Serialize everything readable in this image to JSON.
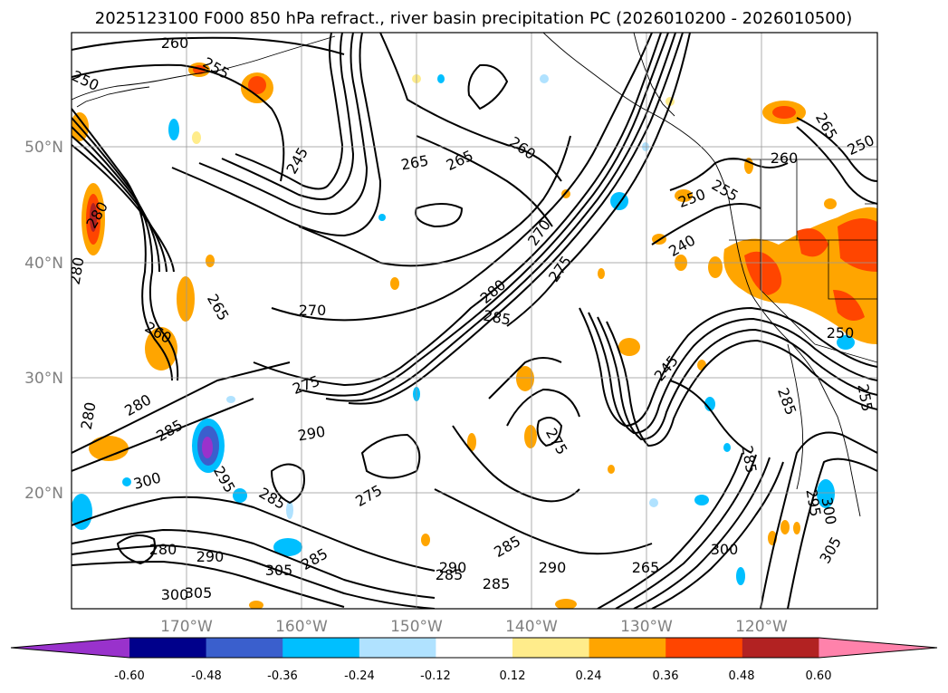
{
  "title": "2025123100 F000 850 hPa refract., river basin precipitation PC (2026010200 - 2026010500)",
  "map": {
    "lat_labels": [
      "50°N",
      "40°N",
      "30°N",
      "20°N"
    ],
    "lon_labels": [
      "170°W",
      "160°W",
      "150°W",
      "140°W",
      "130°W",
      "120°W"
    ]
  },
  "contour_labels": [
    {
      "id": "c260a",
      "text": "260"
    },
    {
      "id": "c255a",
      "text": "255"
    },
    {
      "id": "c250a",
      "text": "250"
    },
    {
      "id": "c245a",
      "text": "245"
    },
    {
      "id": "c265a",
      "text": "265"
    },
    {
      "id": "c265b",
      "text": "265"
    },
    {
      "id": "c260b",
      "text": "260"
    },
    {
      "id": "c260c",
      "text": "260"
    },
    {
      "id": "c265c",
      "text": "265"
    },
    {
      "id": "c250b",
      "text": "250"
    },
    {
      "id": "c255b",
      "text": "255"
    },
    {
      "id": "c250c",
      "text": "250"
    },
    {
      "id": "c270a",
      "text": "270"
    },
    {
      "id": "c275a",
      "text": "275"
    },
    {
      "id": "c280a",
      "text": "280"
    },
    {
      "id": "c285a",
      "text": "285"
    },
    {
      "id": "c270b",
      "text": "270"
    },
    {
      "id": "c265d",
      "text": "265"
    },
    {
      "id": "c260d",
      "text": "260"
    },
    {
      "id": "c240a",
      "text": "240"
    },
    {
      "id": "c250d",
      "text": "250"
    },
    {
      "id": "c245b",
      "text": "245"
    },
    {
      "id": "c275b",
      "text": "275"
    },
    {
      "id": "c275c",
      "text": "275"
    },
    {
      "id": "c290a",
      "text": "290"
    },
    {
      "id": "c280b",
      "text": "280"
    },
    {
      "id": "c285b",
      "text": "285"
    },
    {
      "id": "c280c",
      "text": "280"
    },
    {
      "id": "c300a",
      "text": "300"
    },
    {
      "id": "c285c",
      "text": "285"
    },
    {
      "id": "c295a",
      "text": "295"
    },
    {
      "id": "c305a",
      "text": "305"
    },
    {
      "id": "c290b",
      "text": "290"
    },
    {
      "id": "c280d",
      "text": "280"
    },
    {
      "id": "c300b",
      "text": "300"
    },
    {
      "id": "c305b",
      "text": "305"
    },
    {
      "id": "c285d",
      "text": "285"
    },
    {
      "id": "c290c",
      "text": "290"
    },
    {
      "id": "c265e",
      "text": "265"
    },
    {
      "id": "c285e",
      "text": "285"
    },
    {
      "id": "c300c",
      "text": "300"
    },
    {
      "id": "c305c",
      "text": "305"
    },
    {
      "id": "c295b",
      "text": "295"
    },
    {
      "id": "c285f",
      "text": "285"
    },
    {
      "id": "c300d",
      "text": "300"
    },
    {
      "id": "c255c",
      "text": "255"
    },
    {
      "id": "c285g",
      "text": "285"
    },
    {
      "id": "c275d",
      "text": "275"
    },
    {
      "id": "c280e",
      "text": "280"
    },
    {
      "id": "c285h",
      "text": "285"
    },
    {
      "id": "c290d",
      "text": "290"
    },
    {
      "id": "c285i",
      "text": "285"
    },
    {
      "id": "c280f",
      "text": "280"
    }
  ],
  "colorbar": {
    "ticks": [
      "-0.60",
      "-0.48",
      "-0.36",
      "-0.24",
      "-0.12",
      "0.12",
      "0.24",
      "0.36",
      "0.48",
      "0.60"
    ],
    "colors": [
      "#9932cc",
      "#00008b",
      "#3a5fcd",
      "#00bfff",
      "#b0e2ff",
      "#ffffff",
      "#ffec8b",
      "#ffa500",
      "#ff4500",
      "#b22222",
      "#ff82ab"
    ]
  }
}
